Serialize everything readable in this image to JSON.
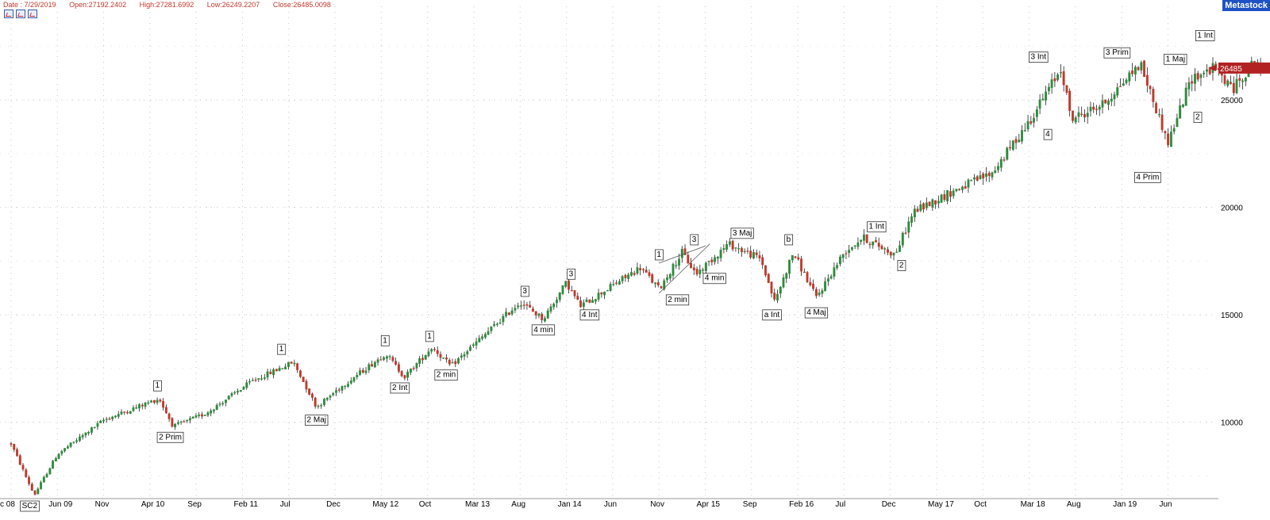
{
  "header": {
    "date": "Date : 7/29/2019",
    "open": "Open:27192.2402",
    "high": "High:27281.6992",
    "low": "Low:26249.2207",
    "close": "Close:26485.0098"
  },
  "brand": "Metastock",
  "toolbar_icons": [
    "chart-tool-icon",
    "chart-tool-icon",
    "chart-tool-icon"
  ],
  "colors": {
    "up": "#2e8b3d",
    "down": "#c0392b",
    "grid": "#c8c8c8",
    "price_marker": "#b22222"
  },
  "chart_data": {
    "type": "candlestick",
    "y_axis_ticks": [
      10000,
      15000,
      20000,
      25000
    ],
    "y_tick_labels": [
      "10000",
      "15000",
      "20000",
      "25000"
    ],
    "ylim": [
      6000,
      28300
    ],
    "grid": true,
    "x_tick_labels": [
      "c 08",
      "Jun 09",
      "Nov",
      "Apr 10",
      "Sep",
      "Feb 11",
      "Jul",
      "Dec",
      "May 12",
      "Oct",
      "Mar 13",
      "Aug",
      "Jan 14",
      "Jun",
      "Nov",
      "Apr 15",
      "Sep",
      "Feb 16",
      "Jul",
      "Dec",
      "May 17",
      "Oct",
      "Mar 18",
      "Aug",
      "Jan 19",
      "Jun"
    ],
    "x_tick_t": [
      0.0,
      0.5,
      1.0,
      1.5,
      2.0,
      2.5,
      3.0,
      3.5,
      4.0,
      4.5,
      5.0,
      5.5,
      6.0,
      6.5,
      7.0,
      7.5,
      8.0,
      8.5,
      9.0,
      9.5,
      10.0,
      10.5,
      11.0,
      11.5,
      12.0,
      12.5
    ],
    "trend": [
      {
        "t": 0.0,
        "v": 9000
      },
      {
        "t": 0.25,
        "v": 6600
      },
      {
        "t": 0.5,
        "v": 8500
      },
      {
        "t": 1.0,
        "v": 10100
      },
      {
        "t": 1.6,
        "v": 11100
      },
      {
        "t": 1.75,
        "v": 9800
      },
      {
        "t": 2.1,
        "v": 10400
      },
      {
        "t": 2.6,
        "v": 11900
      },
      {
        "t": 3.05,
        "v": 12800
      },
      {
        "t": 3.3,
        "v": 10700
      },
      {
        "t": 3.55,
        "v": 11600
      },
      {
        "t": 4.05,
        "v": 13200
      },
      {
        "t": 4.25,
        "v": 12100
      },
      {
        "t": 4.55,
        "v": 13500
      },
      {
        "t": 4.75,
        "v": 12600
      },
      {
        "t": 5.5,
        "v": 15600
      },
      {
        "t": 5.75,
        "v": 14800
      },
      {
        "t": 6.0,
        "v": 16500
      },
      {
        "t": 6.15,
        "v": 15400
      },
      {
        "t": 6.8,
        "v": 17200
      },
      {
        "t": 7.0,
        "v": 16200
      },
      {
        "t": 7.25,
        "v": 17900
      },
      {
        "t": 7.4,
        "v": 16900
      },
      {
        "t": 7.75,
        "v": 18300
      },
      {
        "t": 8.1,
        "v": 17600
      },
      {
        "t": 8.25,
        "v": 15600
      },
      {
        "t": 8.45,
        "v": 17900
      },
      {
        "t": 8.7,
        "v": 15800
      },
      {
        "t": 9.0,
        "v": 17900
      },
      {
        "t": 9.2,
        "v": 18600
      },
      {
        "t": 9.55,
        "v": 17800
      },
      {
        "t": 9.75,
        "v": 19800
      },
      {
        "t": 10.2,
        "v": 20800
      },
      {
        "t": 10.6,
        "v": 21600
      },
      {
        "t": 11.0,
        "v": 24000
      },
      {
        "t": 11.35,
        "v": 26500
      },
      {
        "t": 11.45,
        "v": 24100
      },
      {
        "t": 11.8,
        "v": 24800
      },
      {
        "t": 12.2,
        "v": 26700
      },
      {
        "t": 12.5,
        "v": 23000
      },
      {
        "t": 12.75,
        "v": 26000
      },
      {
        "t": 13.0,
        "v": 26500
      },
      {
        "t": 13.2,
        "v": 25500
      },
      {
        "t": 13.45,
        "v": 26900
      },
      {
        "t": 13.5,
        "v": 26485
      }
    ],
    "wave_labels": [
      {
        "text": "SC2",
        "t": 0.2,
        "v": 6000
      },
      {
        "text": "1",
        "t": 1.58,
        "v": 11600
      },
      {
        "text": "2 Prim",
        "t": 1.72,
        "v": 9200
      },
      {
        "text": "1",
        "t": 2.92,
        "v": 13300
      },
      {
        "text": "2 Maj",
        "t": 3.3,
        "v": 10000
      },
      {
        "text": "1",
        "t": 4.04,
        "v": 13700
      },
      {
        "text": "2 Int",
        "t": 4.2,
        "v": 11500
      },
      {
        "text": "1",
        "t": 4.52,
        "v": 13900
      },
      {
        "text": "2 min",
        "t": 4.7,
        "v": 12100
      },
      {
        "text": "3",
        "t": 5.55,
        "v": 16000
      },
      {
        "text": "4 min",
        "t": 5.75,
        "v": 14200
      },
      {
        "text": "3",
        "t": 6.05,
        "v": 16800
      },
      {
        "text": "4 Int",
        "t": 6.25,
        "v": 14900
      },
      {
        "text": "1",
        "t": 7.0,
        "v": 17700
      },
      {
        "text": "2 min",
        "t": 7.2,
        "v": 15600
      },
      {
        "text": "3",
        "t": 7.38,
        "v": 18400
      },
      {
        "text": "4 min",
        "t": 7.6,
        "v": 16600
      },
      {
        "text": "3 Maj",
        "t": 7.9,
        "v": 18700
      },
      {
        "text": "b",
        "t": 8.4,
        "v": 18400
      },
      {
        "text": "a Int",
        "t": 8.22,
        "v": 14900
      },
      {
        "text": "4 Maj",
        "t": 8.7,
        "v": 15000
      },
      {
        "text": "1 Int",
        "t": 9.35,
        "v": 19000
      },
      {
        "text": "2",
        "t": 9.62,
        "v": 17200
      },
      {
        "text": "3 Int",
        "t": 11.1,
        "v": 26900
      },
      {
        "text": "4",
        "t": 11.2,
        "v": 23300
      },
      {
        "text": "3 Prim",
        "t": 11.95,
        "v": 27100
      },
      {
        "text": "4 Prim",
        "t": 12.28,
        "v": 21300
      },
      {
        "text": "1 Maj",
        "t": 12.58,
        "v": 26800
      },
      {
        "text": "2",
        "t": 12.82,
        "v": 24100
      },
      {
        "text": "1 Int",
        "t": 12.9,
        "v": 27900
      }
    ],
    "price_marker": {
      "value": 26485,
      "label": "26485"
    }
  }
}
